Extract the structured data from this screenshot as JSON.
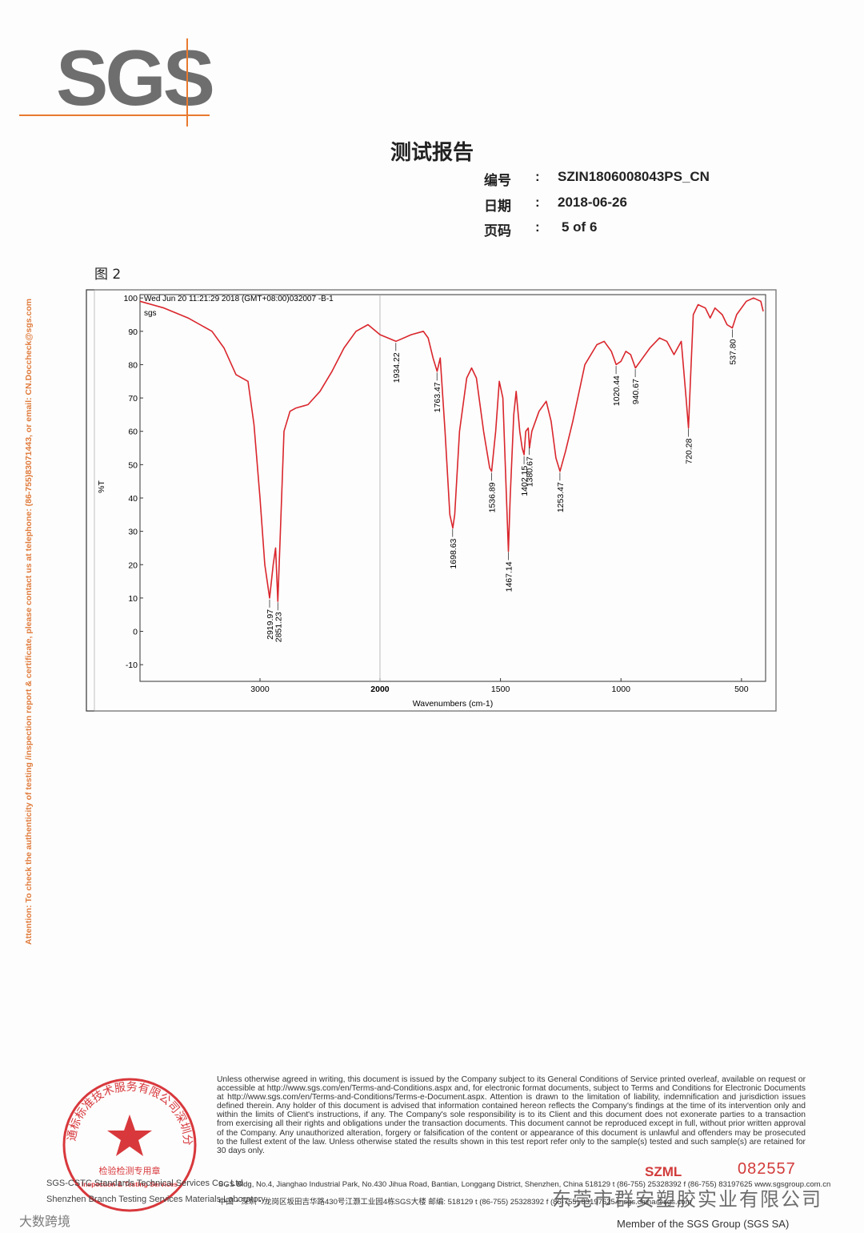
{
  "header": {
    "logo": "SGS",
    "title": "测试报告",
    "fields": [
      {
        "label": "编号",
        "colon": ":",
        "value": "SZIN1806008043PS_CN"
      },
      {
        "label": "日期",
        "colon": ":",
        "value": "2018-06-26"
      },
      {
        "label": "页码",
        "colon": ":",
        "value": "5 of 6"
      }
    ]
  },
  "figure_label": "图 2",
  "chart_data": {
    "type": "line",
    "title": "Wed Jun 20 11:21:29 2018 (GMT+08:00)032007  -B-1",
    "subtitle": "sgs",
    "x_label": "Wavenumbers (cm-1)",
    "y_label": "%T",
    "color": "#d9262c",
    "xlim": [
      4000,
      400
    ],
    "x_scale_break": 2000,
    "xticks": [
      3000,
      2000,
      1500,
      1000,
      500
    ],
    "ylim": [
      -15,
      101
    ],
    "yticks": [
      -10,
      0,
      10,
      20,
      30,
      40,
      50,
      60,
      70,
      80,
      90,
      100
    ],
    "x": [
      4000,
      3800,
      3600,
      3400,
      3300,
      3200,
      3100,
      3050,
      3000,
      2960,
      2920,
      2890,
      2870,
      2851,
      2830,
      2800,
      2750,
      2700,
      2600,
      2500,
      2400,
      2300,
      2200,
      2100,
      2000,
      1934,
      1870,
      1820,
      1800,
      1780,
      1763,
      1750,
      1730,
      1710,
      1698,
      1690,
      1670,
      1640,
      1620,
      1600,
      1570,
      1545,
      1537,
      1520,
      1505,
      1490,
      1475,
      1467,
      1460,
      1445,
      1435,
      1420,
      1410,
      1402,
      1395,
      1385,
      1380,
      1370,
      1340,
      1310,
      1290,
      1270,
      1253,
      1230,
      1200,
      1150,
      1100,
      1070,
      1040,
      1020,
      1000,
      980,
      960,
      940,
      920,
      880,
      840,
      810,
      780,
      750,
      730,
      720,
      712,
      700,
      680,
      650,
      630,
      610,
      580,
      560,
      538,
      520,
      480,
      450,
      420,
      410
    ],
    "values": [
      99,
      97,
      94,
      90,
      85,
      77,
      75,
      62,
      40,
      20,
      10,
      20,
      25,
      9,
      30,
      60,
      66,
      67,
      68,
      72,
      78,
      85,
      90,
      92,
      89,
      87,
      89,
      90,
      88,
      82,
      78,
      82,
      60,
      35,
      31,
      35,
      60,
      76,
      79,
      76,
      60,
      49,
      48,
      60,
      75,
      70,
      40,
      24,
      40,
      65,
      72,
      60,
      55,
      53,
      60,
      61,
      55,
      60,
      66,
      69,
      63,
      52,
      48,
      54,
      63,
      80,
      86,
      87,
      84,
      80,
      81,
      84,
      83,
      79,
      81,
      85,
      88,
      87,
      83,
      87,
      70,
      61,
      75,
      95,
      98,
      97,
      94,
      97,
      95,
      92,
      91,
      95,
      99,
      100,
      99,
      96
    ],
    "peaks": [
      {
        "x": 2919.97,
        "label": "2919.97"
      },
      {
        "x": 2851.23,
        "label": "2851.23"
      },
      {
        "x": 1934.22,
        "label": "1934.22"
      },
      {
        "x": 1763.47,
        "label": "1763.47"
      },
      {
        "x": 1698.63,
        "label": "1698.63"
      },
      {
        "x": 1536.89,
        "label": "1536.89"
      },
      {
        "x": 1467.14,
        "label": "1467.14"
      },
      {
        "x": 1402.15,
        "label": "1402.15"
      },
      {
        "x": 1380.67,
        "label": "1380.67"
      },
      {
        "x": 1253.47,
        "label": "1253.47"
      },
      {
        "x": 1020.44,
        "label": "1020.44"
      },
      {
        "x": 940.67,
        "label": "940.67"
      },
      {
        "x": 720.28,
        "label": "720.28"
      },
      {
        "x": 537.8,
        "label": "537.80"
      }
    ]
  },
  "side_note": "Attention: To check the authenticity of testing /inspection report & certificate, please contact us at telephone: (86-755)83071443, or email: CN.Doccheck@sgs.com",
  "footer": {
    "disclaimer": "Unless otherwise agreed in writing, this document is issued by the Company subject to its General Conditions of Service printed overleaf, available on request or accessible at http://www.sgs.com/en/Terms-and-Conditions.aspx and, for electronic format documents, subject to Terms and Conditions for Electronic Documents at http://www.sgs.com/en/Terms-and-Conditions/Terms-e-Document.aspx. Attention is drawn to the limitation of liability, indemnification and jurisdiction issues defined therein. Any holder of this document is advised that information contained hereon reflects the Company's findings at the time of its intervention only and within the limits of Client's instructions, if any. The Company's sole responsibility is to its Client and this document does not exonerate parties to a transaction from exercising all their rights and obligations under the transaction documents. This document cannot be reproduced except in full, without prior written approval of the Company. Any unauthorized alteration, forgery or falsification of the content or appearance of this document is unlawful and offenders may be prosecuted to the fullest extent of the law. Unless otherwise stated the results shown in this test report refer only to the sample(s) tested and such sample(s) are retained for 30 days only.",
    "code": "SZML",
    "serial": "082557",
    "company_en": "SGS-CSTC Standards Technical Services Co., Ltd.",
    "branch_en": "Shenzhen Branch Testing Services Materials Laboratory.",
    "address_en": "SGS Bldg, No.4, Jianghao Industrial Park, No.430 Jihua Road, Bantian, Longgang District, Shenzhen, China  518129   t (86-755) 25328392   f (86-755) 83197625   www.sgsgroup.com.cn",
    "address_cn": "中国・深圳・龙岗区坂田吉华路430号江灏工业园4栋SGS大楼  邮编: 518129   t (86-755) 25328392   f (86-755) 83197625   e sgs.china@sgs.com",
    "member": "Member of the SGS Group (SGS SA)"
  },
  "stamp": {
    "ring_text": "通标标准技术服务有限公司深圳分公司",
    "seal_title": "检验检测专用章",
    "seal_subtitle": "Inspection & Testing Services"
  },
  "overlays": [
    "东莞市群安塑胶实业有限公司",
    "大数跨境"
  ]
}
